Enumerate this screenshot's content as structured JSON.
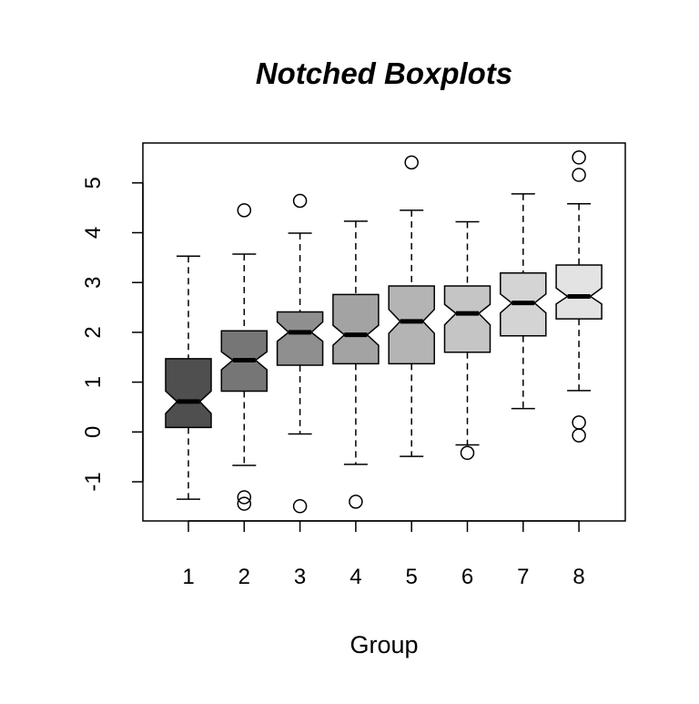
{
  "chart_data": {
    "type": "boxplot",
    "notched": true,
    "title": "Notched Boxplots",
    "xlabel": "Group",
    "ylabel": "",
    "ylim": [
      -1.75,
      5.85
    ],
    "yticks": [
      -1,
      0,
      1,
      2,
      3,
      4,
      5
    ],
    "grid": false,
    "categories": [
      "1",
      "2",
      "3",
      "4",
      "5",
      "6",
      "7",
      "8"
    ],
    "boxes": [
      {
        "group": "1",
        "lower_whisker": -1.35,
        "q1": 0.09,
        "median": 0.61,
        "q3": 1.47,
        "upper_whisker": 3.53,
        "notch": [
          0.37,
          0.82
        ],
        "outliers": [],
        "color": "#4f4f4f"
      },
      {
        "group": "2",
        "lower_whisker": -0.67,
        "q1": 0.82,
        "median": 1.44,
        "q3": 2.03,
        "upper_whisker": 3.57,
        "notch": [
          1.25,
          1.61
        ],
        "outliers": [
          4.45,
          -1.31,
          -1.44
        ],
        "color": "#767676"
      },
      {
        "group": "3",
        "lower_whisker": -0.04,
        "q1": 1.34,
        "median": 2.0,
        "q3": 2.41,
        "upper_whisker": 3.99,
        "notch": [
          1.82,
          2.21
        ],
        "outliers": [
          4.64,
          -1.49
        ],
        "color": "#8f8f8f"
      },
      {
        "group": "4",
        "lower_whisker": -0.65,
        "q1": 1.37,
        "median": 1.95,
        "q3": 2.76,
        "upper_whisker": 4.23,
        "notch": [
          1.74,
          2.14
        ],
        "outliers": [
          -1.4
        ],
        "color": "#a3a3a3"
      },
      {
        "group": "5",
        "lower_whisker": -0.49,
        "q1": 1.37,
        "median": 2.22,
        "q3": 2.93,
        "upper_whisker": 4.45,
        "notch": [
          1.98,
          2.46
        ],
        "outliers": [
          5.41
        ],
        "color": "#b4b4b4"
      },
      {
        "group": "6",
        "lower_whisker": -0.26,
        "q1": 1.6,
        "median": 2.38,
        "q3": 2.93,
        "upper_whisker": 4.22,
        "notch": [
          2.15,
          2.56
        ],
        "outliers": [
          -0.42
        ],
        "color": "#c5c5c5"
      },
      {
        "group": "7",
        "lower_whisker": 0.47,
        "q1": 1.93,
        "median": 2.59,
        "q3": 3.19,
        "upper_whisker": 4.78,
        "notch": [
          2.39,
          2.77
        ],
        "outliers": [],
        "color": "#d4d4d4"
      },
      {
        "group": "8",
        "lower_whisker": 0.83,
        "q1": 2.27,
        "median": 2.72,
        "q3": 3.35,
        "upper_whisker": 4.58,
        "notch": [
          2.57,
          2.89
        ],
        "outliers": [
          5.51,
          5.16,
          0.19,
          -0.07
        ],
        "color": "#e3e3e3"
      }
    ]
  }
}
